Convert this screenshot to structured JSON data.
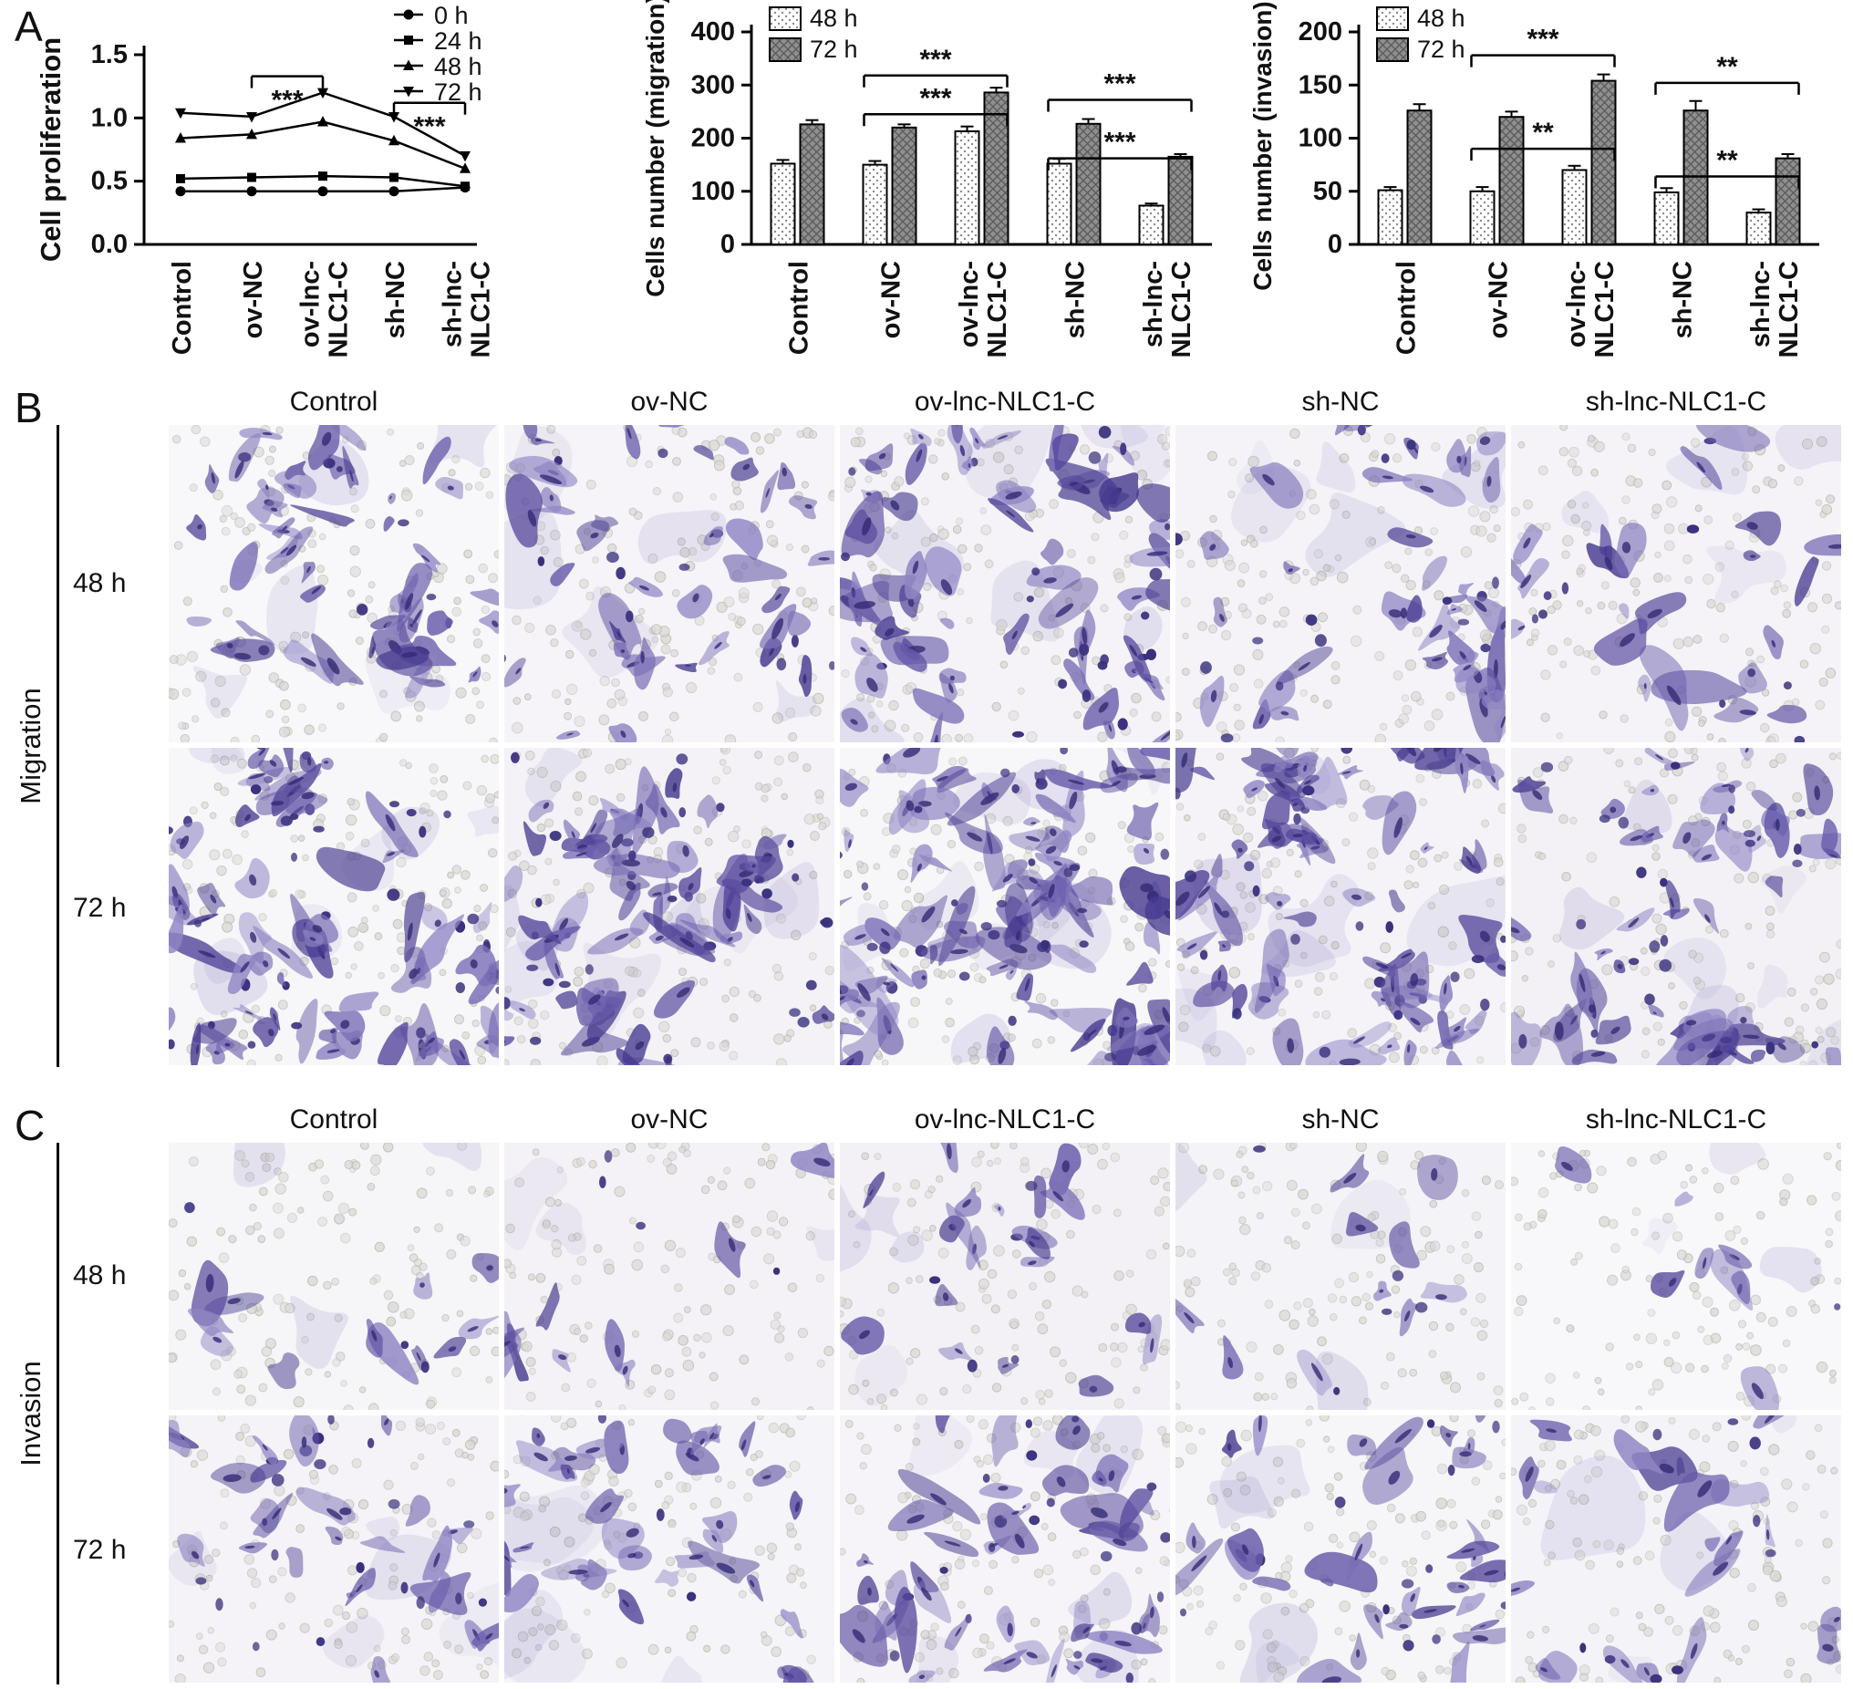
{
  "panels": {
    "a": {
      "label": "A"
    },
    "b": {
      "label": "B",
      "axis_label": "Migration",
      "row_labels": [
        "48 h",
        "72 h"
      ],
      "column_labels": [
        "Control",
        "ov-NC",
        "ov-lnc-NLC1-C",
        "sh-NC",
        "sh-lnc-NLC1-C"
      ],
      "cell_density": [
        [
          58,
          52,
          88,
          55,
          32
        ],
        [
          105,
          98,
          128,
          102,
          78
        ]
      ],
      "seed": 11
    },
    "c": {
      "label": "C",
      "axis_label": "Invasion",
      "row_labels": [
        "48 h",
        "72 h"
      ],
      "column_labels": [
        "Control",
        "ov-NC",
        "ov-lnc-NLC1-C",
        "sh-NC",
        "sh-lnc-NLC1-C"
      ],
      "cell_density": [
        [
          15,
          13,
          26,
          15,
          9
        ],
        [
          46,
          42,
          64,
          46,
          30
        ]
      ],
      "seed": 77
    }
  },
  "chart_data": [
    {
      "type": "line",
      "title": "",
      "ylabel": "Cell proliferation",
      "ylim": [
        0,
        1.5
      ],
      "yticks": [
        0,
        0.5,
        1,
        1.5
      ],
      "categories": [
        "Control",
        "ov-NC",
        "ov-lnc-\nNLC1-C",
        "sh-NC",
        "sh-lnc-\nNLC1-C"
      ],
      "legend_position": "top-right",
      "series": [
        {
          "name": "0 h",
          "marker": "circle",
          "values": [
            0.42,
            0.42,
            0.42,
            0.42,
            0.45
          ]
        },
        {
          "name": "24 h",
          "marker": "square",
          "values": [
            0.52,
            0.53,
            0.54,
            0.53,
            0.46
          ]
        },
        {
          "name": "48 h",
          "marker": "triangle",
          "values": [
            0.84,
            0.87,
            0.97,
            0.82,
            0.6
          ]
        },
        {
          "name": "72 h",
          "marker": "triangle-down",
          "values": [
            1.04,
            1.01,
            1.2,
            1.01,
            0.7
          ]
        }
      ],
      "significance": [
        {
          "x1": 1,
          "x2": 2,
          "y": 1.33,
          "label": "***"
        },
        {
          "x1": 3,
          "x2": 4,
          "y": 1.12,
          "label": "***"
        }
      ]
    },
    {
      "type": "bar",
      "title": "",
      "ylabel": "Cells number (migration)",
      "ylim": [
        0,
        400
      ],
      "yticks": [
        0,
        100,
        200,
        300,
        400
      ],
      "categories": [
        "Control",
        "ov-NC",
        "ov-lnc-\nNLC1-C",
        "sh-NC",
        "sh-lnc-\nNLC1-C"
      ],
      "legend_position": "top-left",
      "series": [
        {
          "name": "48 h",
          "pattern": "dots",
          "values": [
            152,
            150,
            213,
            152,
            73
          ],
          "errors": [
            7,
            7,
            9,
            9,
            4
          ]
        },
        {
          "name": "72 h",
          "pattern": "hatch",
          "values": [
            226,
            220,
            286,
            227,
            165
          ],
          "errors": [
            8,
            6,
            9,
            9,
            5
          ]
        }
      ],
      "significance": [
        {
          "x1": 1,
          "x2": 2,
          "y": 318,
          "label": "***"
        },
        {
          "x1": 1,
          "x2": 2,
          "y": 245,
          "label": "***"
        },
        {
          "x1": 3,
          "x2": 4,
          "y": 272,
          "label": "***"
        },
        {
          "x1": 3,
          "x2": 4,
          "y": 162,
          "label": "***"
        }
      ]
    },
    {
      "type": "bar",
      "title": "",
      "ylabel": "Cells number (invasion)",
      "ylim": [
        0,
        200
      ],
      "yticks": [
        0,
        50,
        100,
        150,
        200
      ],
      "categories": [
        "Control",
        "ov-NC",
        "ov-lnc-\nNLC1-C",
        "sh-NC",
        "sh-lnc-\nNLC1-C"
      ],
      "legend_position": "top-left",
      "series": [
        {
          "name": "48 h",
          "pattern": "dots",
          "values": [
            51,
            50,
            70,
            49,
            30
          ],
          "errors": [
            3,
            4,
            4,
            4,
            3
          ]
        },
        {
          "name": "72 h",
          "pattern": "hatch",
          "values": [
            126,
            120,
            154,
            126,
            81
          ],
          "errors": [
            6,
            5,
            6,
            9,
            4
          ]
        }
      ],
      "significance": [
        {
          "x1": 1,
          "x2": 2,
          "y": 178,
          "label": "***"
        },
        {
          "x1": 1,
          "x2": 2,
          "y": 90,
          "label": "**"
        },
        {
          "x1": 3,
          "x2": 4,
          "y": 152,
          "label": "**"
        },
        {
          "x1": 3,
          "x2": 4,
          "y": 64,
          "label": "**"
        }
      ]
    }
  ],
  "colors": {
    "axis": "#000000",
    "bar_gray": "#8f8f8f",
    "stain_dark": "#38307c",
    "stain_mid": "#675aa9",
    "stain_light": "#8f85c4",
    "pore_fill": "#dbd9d4",
    "pore_stroke": "#b8b6b1"
  }
}
